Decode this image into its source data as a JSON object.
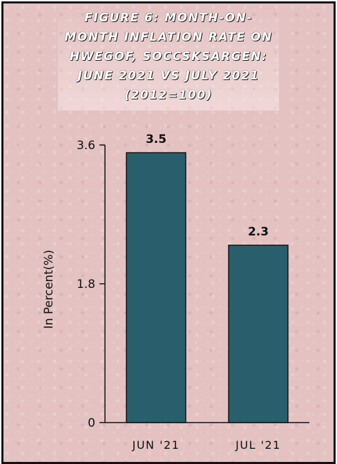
{
  "title_lines": [
    "FIGURE 6: MONTH-ON-",
    "MONTH INFLATION RATE ON",
    "HWEGOF, SOCCSKSARGEN:",
    "JUNE 2021 VS JULY 2021",
    "(2012=100)"
  ],
  "colors": {
    "bar": "#295f6d",
    "background": "#e4c2c2",
    "axis": "#111111"
  },
  "chart_data": {
    "type": "bar",
    "title": "FIGURE 6: MONTH-ON-MONTH INFLATION RATE ON HWEGOF, SOCCSKSARGEN: JUNE 2021 VS JULY 2021 (2012=100)",
    "categories": [
      "JUN '21",
      "JUL '21"
    ],
    "values": [
      3.5,
      2.3
    ],
    "data_labels": [
      "3.5",
      "2.3"
    ],
    "ylabel": "In Percent(%)",
    "xlabel": "",
    "ylim": [
      0,
      3.6
    ],
    "yticks": [
      0,
      1.8,
      3.6
    ],
    "ytick_labels": [
      "0",
      "1.8",
      "3.6"
    ],
    "grid": false,
    "legend": "none"
  }
}
